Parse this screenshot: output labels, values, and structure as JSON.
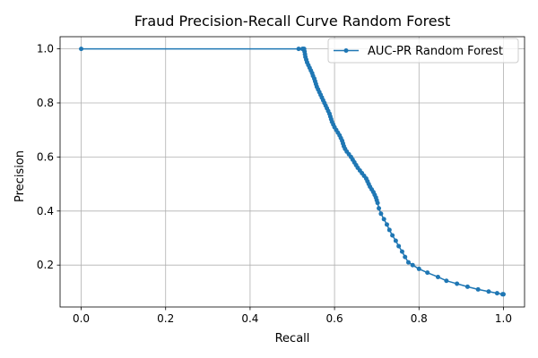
{
  "chart_data": {
    "type": "line",
    "title": "Fraud Precision-Recall Curve Random Forest",
    "xlabel": "Recall",
    "ylabel": "Precision",
    "xlim": [
      -0.05,
      1.05
    ],
    "ylim": [
      0.045,
      1.045
    ],
    "xticks": [
      0.0,
      0.2,
      0.4,
      0.6,
      0.8,
      1.0
    ],
    "xtick_labels": [
      "0.0",
      "0.2",
      "0.4",
      "0.6",
      "0.8",
      "1.0"
    ],
    "yticks": [
      0.2,
      0.4,
      0.6,
      0.8,
      1.0
    ],
    "ytick_labels": [
      "0.2",
      "0.4",
      "0.6",
      "0.8",
      "1.0"
    ],
    "grid": true,
    "legend_position": "top-right",
    "series": [
      {
        "name": "AUC-PR Random Forest",
        "color": "#1f77b4",
        "marker": "circle",
        "points": [
          [
            0.0,
            1.0
          ],
          [
            0.515,
            1.0
          ],
          [
            0.524,
            1.0
          ],
          [
            0.526,
            1.0
          ],
          [
            0.528,
            1.0
          ],
          [
            0.529,
            0.99
          ],
          [
            0.53,
            0.98
          ],
          [
            0.531,
            0.97
          ],
          [
            0.533,
            0.96
          ],
          [
            0.535,
            0.95
          ],
          [
            0.538,
            0.94
          ],
          [
            0.541,
            0.93
          ],
          [
            0.544,
            0.92
          ],
          [
            0.547,
            0.91
          ],
          [
            0.549,
            0.9
          ],
          [
            0.552,
            0.89
          ],
          [
            0.554,
            0.88
          ],
          [
            0.556,
            0.87
          ],
          [
            0.558,
            0.86
          ],
          [
            0.561,
            0.85
          ],
          [
            0.564,
            0.84
          ],
          [
            0.567,
            0.83
          ],
          [
            0.57,
            0.82
          ],
          [
            0.573,
            0.81
          ],
          [
            0.576,
            0.8
          ],
          [
            0.579,
            0.79
          ],
          [
            0.582,
            0.78
          ],
          [
            0.585,
            0.77
          ],
          [
            0.588,
            0.76
          ],
          [
            0.59,
            0.75
          ],
          [
            0.592,
            0.74
          ],
          [
            0.594,
            0.73
          ],
          [
            0.597,
            0.72
          ],
          [
            0.6,
            0.71
          ],
          [
            0.604,
            0.7
          ],
          [
            0.608,
            0.69
          ],
          [
            0.612,
            0.68
          ],
          [
            0.615,
            0.67
          ],
          [
            0.618,
            0.66
          ],
          [
            0.62,
            0.65
          ],
          [
            0.622,
            0.64
          ],
          [
            0.625,
            0.63
          ],
          [
            0.629,
            0.62
          ],
          [
            0.634,
            0.61
          ],
          [
            0.639,
            0.6
          ],
          [
            0.643,
            0.59
          ],
          [
            0.647,
            0.58
          ],
          [
            0.651,
            0.57
          ],
          [
            0.655,
            0.56
          ],
          [
            0.66,
            0.55
          ],
          [
            0.665,
            0.54
          ],
          [
            0.67,
            0.53
          ],
          [
            0.675,
            0.52
          ],
          [
            0.678,
            0.51
          ],
          [
            0.681,
            0.5
          ],
          [
            0.684,
            0.49
          ],
          [
            0.688,
            0.48
          ],
          [
            0.692,
            0.47
          ],
          [
            0.695,
            0.46
          ],
          [
            0.698,
            0.45
          ],
          [
            0.7,
            0.44
          ],
          [
            0.702,
            0.43
          ],
          [
            0.705,
            0.41
          ],
          [
            0.71,
            0.39
          ],
          [
            0.717,
            0.37
          ],
          [
            0.724,
            0.35
          ],
          [
            0.73,
            0.33
          ],
          [
            0.737,
            0.31
          ],
          [
            0.745,
            0.29
          ],
          [
            0.752,
            0.27
          ],
          [
            0.76,
            0.25
          ],
          [
            0.767,
            0.23
          ],
          [
            0.775,
            0.21
          ],
          [
            0.785,
            0.2
          ],
          [
            0.8,
            0.186
          ],
          [
            0.82,
            0.172
          ],
          [
            0.845,
            0.156
          ],
          [
            0.865,
            0.142
          ],
          [
            0.89,
            0.131
          ],
          [
            0.915,
            0.12
          ],
          [
            0.94,
            0.11
          ],
          [
            0.965,
            0.102
          ],
          [
            0.985,
            0.096
          ],
          [
            0.998,
            0.092
          ],
          [
            1.0,
            0.092
          ]
        ]
      }
    ]
  }
}
